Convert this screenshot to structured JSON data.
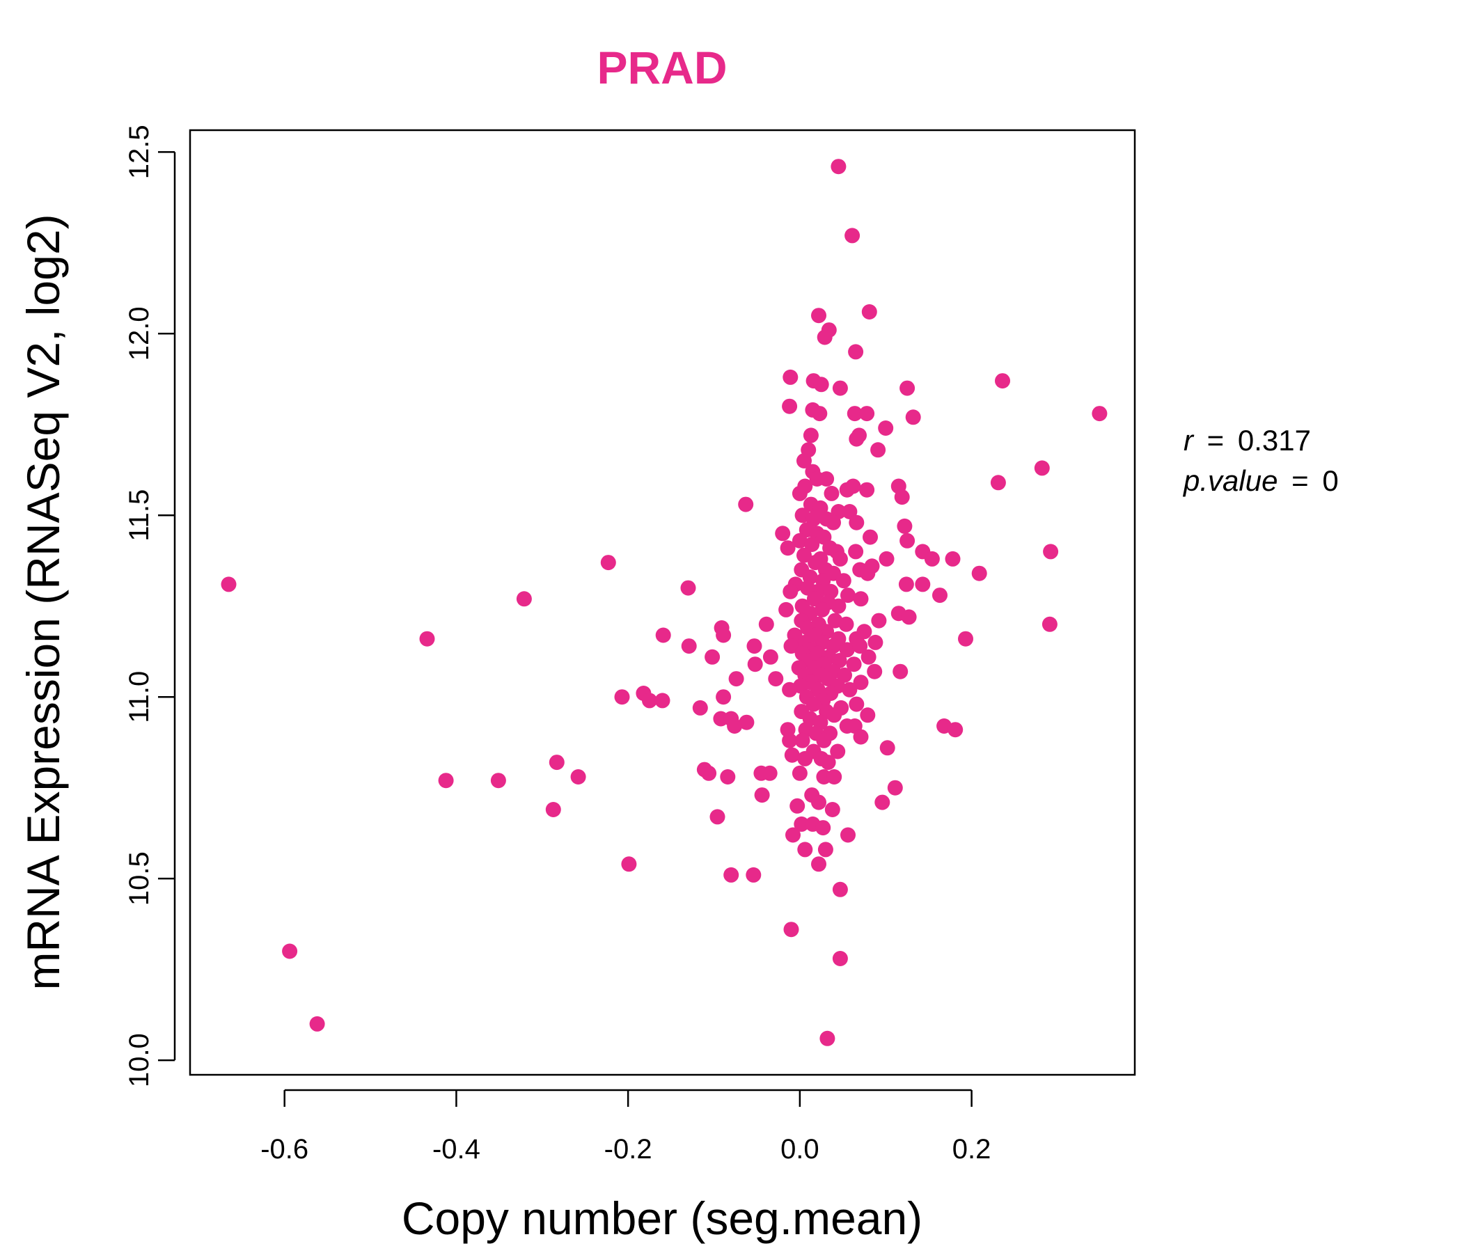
{
  "colors": {
    "point": "#e7298a",
    "title": "#e7298a",
    "axis": "#000000",
    "background": "#ffffff"
  },
  "chart_data": {
    "type": "scatter",
    "title": "PRAD",
    "xlabel": "Copy number (seg.mean)",
    "ylabel": "mRNA Expression (RNASeq V2, log2)",
    "xlim": [
      -0.71,
      0.39
    ],
    "ylim": [
      9.96,
      12.56
    ],
    "xticks": [
      -0.6,
      -0.4,
      -0.2,
      0.0,
      0.2
    ],
    "xtick_labels": [
      "-0.6",
      "-0.4",
      "-0.2",
      "0.0",
      "0.2"
    ],
    "yticks": [
      10.0,
      10.5,
      11.0,
      11.5,
      12.0,
      12.5
    ],
    "ytick_labels": [
      "10.0",
      "10.5",
      "11.0",
      "11.5",
      "12.0",
      "12.5"
    ],
    "grid": false,
    "legend": "none",
    "annotations": {
      "r_label": "r",
      "r_value": "0.317",
      "p_label": "p.value",
      "p_value": "0"
    },
    "points": [
      [
        0.045,
        12.46
      ],
      [
        0.061,
        12.27
      ],
      [
        0.081,
        12.06
      ],
      [
        0.022,
        12.05
      ],
      [
        0.034,
        12.01
      ],
      [
        0.029,
        11.99
      ],
      [
        0.065,
        11.95
      ],
      [
        -0.011,
        11.88
      ],
      [
        0.016,
        11.87
      ],
      [
        0.025,
        11.86
      ],
      [
        0.047,
        11.85
      ],
      [
        0.125,
        11.85
      ],
      [
        0.236,
        11.87
      ],
      [
        0.349,
        11.78
      ],
      [
        -0.012,
        11.8
      ],
      [
        0.015,
        11.79
      ],
      [
        0.023,
        11.78
      ],
      [
        0.064,
        11.78
      ],
      [
        0.078,
        11.78
      ],
      [
        0.132,
        11.77
      ],
      [
        0.1,
        11.74
      ],
      [
        0.013,
        11.72
      ],
      [
        0.069,
        11.72
      ],
      [
        0.066,
        11.71
      ],
      [
        0.091,
        11.68
      ],
      [
        0.01,
        11.68
      ],
      [
        0.005,
        11.65
      ],
      [
        0.015,
        11.62
      ],
      [
        0.02,
        11.6
      ],
      [
        0.031,
        11.6
      ],
      [
        0.282,
        11.63
      ],
      [
        0.231,
        11.59
      ],
      [
        0.115,
        11.58
      ],
      [
        0.078,
        11.57
      ],
      [
        0.055,
        11.57
      ],
      [
        0.062,
        11.58
      ],
      [
        0.037,
        11.56
      ],
      [
        0.0,
        11.56
      ],
      [
        0.006,
        11.58
      ],
      [
        0.119,
        11.55
      ],
      [
        -0.063,
        11.53
      ],
      [
        0.013,
        11.53
      ],
      [
        0.024,
        11.52
      ],
      [
        0.045,
        11.51
      ],
      [
        0.058,
        11.51
      ],
      [
        0.003,
        11.5
      ],
      [
        0.016,
        11.49
      ],
      [
        0.031,
        11.49
      ],
      [
        0.039,
        11.48
      ],
      [
        0.066,
        11.48
      ],
      [
        0.122,
        11.47
      ],
      [
        0.008,
        11.46
      ],
      [
        0.02,
        11.45
      ],
      [
        0.028,
        11.44
      ],
      [
        -0.02,
        11.45
      ],
      [
        0.082,
        11.44
      ],
      [
        0.125,
        11.43
      ],
      [
        0.0,
        11.43
      ],
      [
        0.014,
        11.42
      ],
      [
        0.035,
        11.41
      ],
      [
        0.043,
        11.4
      ],
      [
        -0.014,
        11.41
      ],
      [
        0.065,
        11.4
      ],
      [
        0.143,
        11.4
      ],
      [
        0.292,
        11.4
      ],
      [
        0.005,
        11.39
      ],
      [
        0.024,
        11.38
      ],
      [
        0.047,
        11.38
      ],
      [
        0.154,
        11.38
      ],
      [
        0.178,
        11.38
      ],
      [
        0.101,
        11.38
      ],
      [
        -0.223,
        11.37
      ],
      [
        0.084,
        11.36
      ],
      [
        0.018,
        11.37
      ],
      [
        0.03,
        11.35
      ],
      [
        0.07,
        11.35
      ],
      [
        0.002,
        11.35
      ],
      [
        0.039,
        11.34
      ],
      [
        0.079,
        11.34
      ],
      [
        0.209,
        11.34
      ],
      [
        0.012,
        11.33
      ],
      [
        0.027,
        11.32
      ],
      [
        0.051,
        11.32
      ],
      [
        -0.005,
        11.31
      ],
      [
        0.124,
        11.31
      ],
      [
        0.143,
        11.31
      ],
      [
        -0.665,
        11.31
      ],
      [
        -0.13,
        11.3
      ],
      [
        0.009,
        11.3
      ],
      [
        0.021,
        11.29
      ],
      [
        0.036,
        11.29
      ],
      [
        0.056,
        11.28
      ],
      [
        -0.011,
        11.29
      ],
      [
        0.071,
        11.27
      ],
      [
        0.163,
        11.28
      ],
      [
        -0.321,
        11.27
      ],
      [
        0.017,
        11.27
      ],
      [
        0.033,
        11.26
      ],
      [
        0.003,
        11.25
      ],
      [
        0.045,
        11.25
      ],
      [
        -0.016,
        11.24
      ],
      [
        0.026,
        11.24
      ],
      [
        0.012,
        11.23
      ],
      [
        0.115,
        11.23
      ],
      [
        0.127,
        11.22
      ],
      [
        0.092,
        11.21
      ],
      [
        0.041,
        11.21
      ],
      [
        0.002,
        11.21
      ],
      [
        0.022,
        11.2
      ],
      [
        -0.039,
        11.2
      ],
      [
        0.054,
        11.2
      ],
      [
        0.291,
        11.2
      ],
      [
        -0.091,
        11.19
      ],
      [
        0.009,
        11.19
      ],
      [
        0.075,
        11.18
      ],
      [
        0.031,
        11.18
      ],
      [
        -0.089,
        11.17
      ],
      [
        -0.006,
        11.17
      ],
      [
        0.018,
        11.17
      ],
      [
        0.045,
        11.16
      ],
      [
        0.066,
        11.16
      ],
      [
        -0.159,
        11.17
      ],
      [
        -0.434,
        11.16
      ],
      [
        0.193,
        11.16
      ],
      [
        0.006,
        11.15
      ],
      [
        0.026,
        11.15
      ],
      [
        0.039,
        11.14
      ],
      [
        0.088,
        11.15
      ],
      [
        -0.01,
        11.14
      ],
      [
        0.014,
        11.13
      ],
      [
        0.055,
        11.13
      ],
      [
        -0.053,
        11.14
      ],
      [
        0.07,
        11.14
      ],
      [
        -0.129,
        11.14
      ],
      [
        0.003,
        11.12
      ],
      [
        0.021,
        11.12
      ],
      [
        0.034,
        11.11
      ],
      [
        -0.034,
        11.11
      ],
      [
        0.08,
        11.11
      ],
      [
        -0.102,
        11.11
      ],
      [
        0.011,
        11.1
      ],
      [
        0.046,
        11.1
      ],
      [
        -0.052,
        11.09
      ],
      [
        0.028,
        11.09
      ],
      [
        0.063,
        11.09
      ],
      [
        -0.001,
        11.08
      ],
      [
        0.017,
        11.08
      ],
      [
        0.039,
        11.07
      ],
      [
        0.087,
        11.07
      ],
      [
        0.117,
        11.07
      ],
      [
        0.006,
        11.06
      ],
      [
        0.024,
        11.06
      ],
      [
        0.052,
        11.06
      ],
      [
        -0.028,
        11.05
      ],
      [
        -0.074,
        11.05
      ],
      [
        0.033,
        11.05
      ],
      [
        0.071,
        11.04
      ],
      [
        0.013,
        11.04
      ],
      [
        0.001,
        11.03
      ],
      [
        0.044,
        11.03
      ],
      [
        0.021,
        11.02
      ],
      [
        0.058,
        11.02
      ],
      [
        -0.012,
        11.02
      ],
      [
        0.036,
        11.01
      ],
      [
        -0.089,
        11.0
      ],
      [
        0.008,
        11.0
      ],
      [
        -0.207,
        11.0
      ],
      [
        -0.182,
        11.01
      ],
      [
        -0.175,
        10.99
      ],
      [
        -0.16,
        10.99
      ],
      [
        0.027,
        10.99
      ],
      [
        0.066,
        10.98
      ],
      [
        0.016,
        10.98
      ],
      [
        0.048,
        10.97
      ],
      [
        -0.116,
        10.97
      ],
      [
        0.002,
        10.96
      ],
      [
        0.031,
        10.96
      ],
      [
        0.079,
        10.95
      ],
      [
        0.04,
        10.95
      ],
      [
        -0.092,
        10.94
      ],
      [
        -0.08,
        10.94
      ],
      [
        -0.062,
        10.93
      ],
      [
        0.012,
        10.94
      ],
      [
        0.024,
        10.93
      ],
      [
        -0.076,
        10.92
      ],
      [
        0.055,
        10.92
      ],
      [
        0.064,
        10.92
      ],
      [
        0.168,
        10.92
      ],
      [
        0.181,
        10.91
      ],
      [
        0.007,
        10.91
      ],
      [
        0.035,
        10.9
      ],
      [
        -0.014,
        10.91
      ],
      [
        0.019,
        10.9
      ],
      [
        0.071,
        10.89
      ],
      [
        0.003,
        10.88
      ],
      [
        0.028,
        10.88
      ],
      [
        -0.012,
        10.88
      ],
      [
        0.044,
        10.85
      ],
      [
        0.102,
        10.86
      ],
      [
        0.016,
        10.85
      ],
      [
        -0.009,
        10.84
      ],
      [
        0.006,
        10.83
      ],
      [
        0.025,
        10.83
      ],
      [
        0.033,
        10.82
      ],
      [
        -0.283,
        10.82
      ],
      [
        -0.258,
        10.78
      ],
      [
        -0.111,
        10.8
      ],
      [
        -0.106,
        10.79
      ],
      [
        -0.084,
        10.78
      ],
      [
        -0.045,
        10.79
      ],
      [
        -0.035,
        10.79
      ],
      [
        0.0,
        10.79
      ],
      [
        0.028,
        10.78
      ],
      [
        0.04,
        10.78
      ],
      [
        -0.412,
        10.77
      ],
      [
        -0.351,
        10.77
      ],
      [
        0.111,
        10.75
      ],
      [
        -0.044,
        10.73
      ],
      [
        0.014,
        10.73
      ],
      [
        0.022,
        10.71
      ],
      [
        0.096,
        10.71
      ],
      [
        -0.003,
        10.7
      ],
      [
        0.038,
        10.69
      ],
      [
        -0.287,
        10.69
      ],
      [
        -0.096,
        10.67
      ],
      [
        0.002,
        10.65
      ],
      [
        0.015,
        10.65
      ],
      [
        0.027,
        10.64
      ],
      [
        -0.008,
        10.62
      ],
      [
        0.056,
        10.62
      ],
      [
        0.006,
        10.58
      ],
      [
        0.03,
        10.58
      ],
      [
        -0.199,
        10.54
      ],
      [
        0.022,
        10.54
      ],
      [
        -0.08,
        10.51
      ],
      [
        -0.054,
        10.51
      ],
      [
        0.047,
        10.47
      ],
      [
        -0.01,
        10.36
      ],
      [
        0.047,
        10.28
      ],
      [
        -0.594,
        10.3
      ],
      [
        -0.562,
        10.1
      ],
      [
        0.032,
        10.06
      ]
    ]
  }
}
